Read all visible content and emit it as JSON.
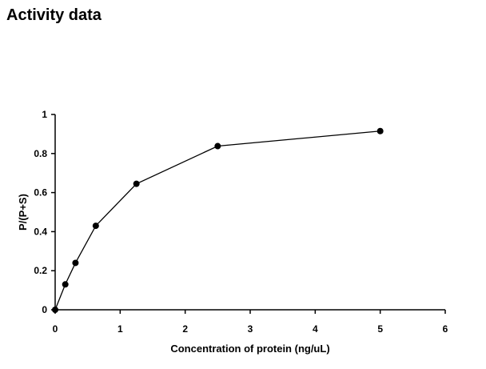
{
  "chart_data": {
    "type": "line",
    "title": "Activity data",
    "xlabel": "Concentration of protein (ng/uL)",
    "ylabel": "P/(P+S)",
    "x": [
      0,
      0.156,
      0.3125,
      0.625,
      1.25,
      2.5,
      5
    ],
    "series": [
      {
        "color": "#000000",
        "values": [
          0,
          0.13,
          0.24,
          0.43,
          0.645,
          0.838,
          0.915
        ]
      }
    ],
    "xlim": [
      0,
      6
    ],
    "xticks": [
      0,
      1,
      2,
      3,
      4,
      5,
      6
    ],
    "ylim": [
      0,
      1
    ],
    "yticks": [
      0,
      0.2,
      0.4,
      0.6,
      0.8,
      1
    ]
  }
}
